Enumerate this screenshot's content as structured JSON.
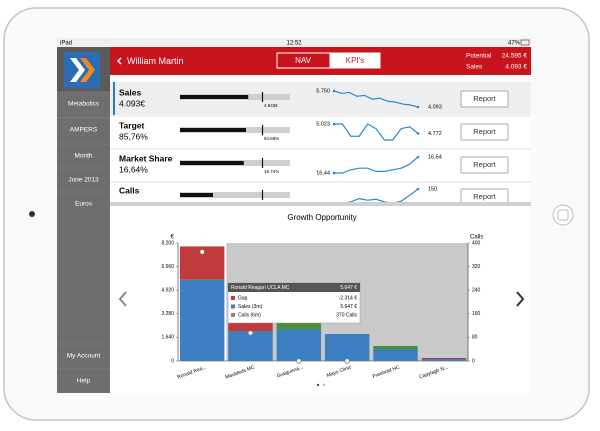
{
  "status_bar": {
    "device": "iPad",
    "time": "12:52",
    "battery": "47%"
  },
  "sidebar": {
    "items": [
      "Metabolics",
      "AMPERS",
      "Month",
      "June 2013",
      "Euros"
    ],
    "bottom_items": [
      "My Account",
      "Help"
    ]
  },
  "header": {
    "back_title": "William Martin",
    "tabs": [
      "NAV",
      "KPI's"
    ],
    "potential_label": "Potential",
    "potential_value": "24.595 €",
    "sales_label": "Sales",
    "sales_value": "4.093 €"
  },
  "kpis": [
    {
      "label": "Sales",
      "value": "4.093€",
      "bar_fill": 0.62,
      "bar_marker": 0.75,
      "bar_label": "4.843€",
      "spark_start_label": "5.750",
      "spark_end_label": "4.093",
      "spark": [
        5750,
        5500,
        5600,
        5200,
        5300,
        4900,
        5000,
        4700,
        4600,
        4400,
        4300,
        4093
      ],
      "button": "Report"
    },
    {
      "label": "Target",
      "value": "85,76%",
      "bar_fill": 0.6,
      "bar_marker": 0.75,
      "bar_label": "94.68%",
      "spark_start_label": "5.023",
      "spark_end_label": "4.772",
      "spark": [
        5023,
        5023,
        4700,
        4700,
        5023,
        4900,
        4600,
        4600,
        4900,
        4950,
        4772
      ],
      "button": "Report"
    },
    {
      "label": "Market Share",
      "value": "16,64%",
      "bar_fill": 0.58,
      "bar_marker": 0.75,
      "bar_label": "19.74%",
      "spark_start_label": "16,44",
      "spark_end_label": "16,64",
      "spark": [
        16.44,
        16.44,
        16.48,
        16.5,
        16.5,
        16.46,
        16.46,
        16.48,
        16.5,
        16.55,
        16.64
      ],
      "button": "Report"
    },
    {
      "label": "Calls",
      "bar_fill": 0.3,
      "bar_marker": 0.75,
      "spark_end_label": "150",
      "spark": [
        100,
        105,
        110,
        120,
        115,
        118,
        110,
        105,
        112,
        130,
        150
      ],
      "button": "Report"
    }
  ],
  "growth_chart": {
    "title": "Growth Opportunity",
    "y_label": "€",
    "y2_label": "Calls",
    "categories": [
      "Ronald Rea...",
      "Mauldeds MC",
      "Graiguena...",
      "Mayo Clinic",
      "Freehold HC",
      "Capylagh N..."
    ],
    "ylim": [
      0,
      8200
    ],
    "yticks": [
      0,
      {
        "value": 1640,
        "label": "1.640"
      },
      {
        "value": 3280,
        "label": "3.280"
      },
      {
        "value": 4920,
        "label": "4.920"
      },
      {
        "value": 6560,
        "label": "6.560"
      },
      {
        "value": 8200,
        "label": "8.200"
      }
    ],
    "y2lim": [
      0,
      400
    ],
    "y2ticks": [
      0,
      80,
      160,
      240,
      320,
      400
    ],
    "series": [
      {
        "name": "Sales (3m)",
        "color": "#3b7fc0",
        "values": [
          5647,
          2085,
          2224,
          1876,
          834,
          140
        ]
      },
      {
        "name": "Gap",
        "color": "#c0393b",
        "values": [
          2314,
          695,
          null,
          null,
          null,
          70
        ]
      },
      {
        "color": "#4e8f3a",
        "values": [
          null,
          null,
          490,
          null,
          208,
          null
        ]
      }
    ],
    "calls": [
      370,
      95,
      0,
      0,
      null,
      null
    ],
    "tooltip": {
      "title": "Ronald Reagan UCLA MC",
      "title_value": "5.647 €",
      "rows": [
        [
          "Gap",
          "-2.314 €"
        ],
        [
          "Sales (3m)",
          "5.647 €"
        ],
        [
          "Calls (6m)",
          "370 Calls"
        ]
      ]
    }
  }
}
